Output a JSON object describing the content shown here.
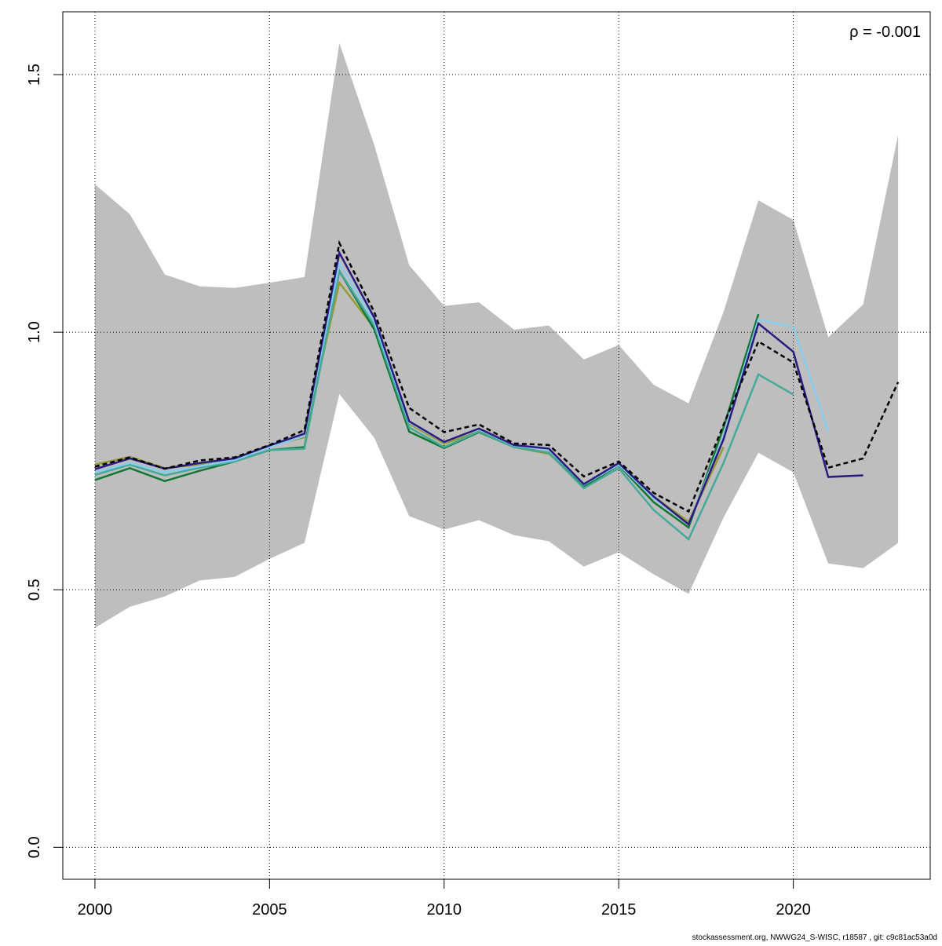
{
  "chart_data": {
    "type": "line",
    "annotation": "ρ = -0.001",
    "footer": "stockassessment.org, NWWG24_S-WISC, r18587 , git: c9c81ac53a0d",
    "x": [
      2000,
      2001,
      2002,
      2003,
      2004,
      2005,
      2006,
      2007,
      2008,
      2009,
      2010,
      2011,
      2012,
      2013,
      2014,
      2015,
      2016,
      2017,
      2018,
      2019,
      2020,
      2021,
      2022,
      2023
    ],
    "band": {
      "color": "#bebebe",
      "upper": [
        1.287,
        1.229,
        1.112,
        1.089,
        1.086,
        1.096,
        1.107,
        1.561,
        1.363,
        1.13,
        1.051,
        1.058,
        1.005,
        1.013,
        0.947,
        0.975,
        0.898,
        0.862,
        1.039,
        1.256,
        1.218,
        0.99,
        1.054,
        1.383
      ],
      "lower": [
        0.426,
        0.467,
        0.487,
        0.518,
        0.525,
        0.56,
        0.591,
        0.88,
        0.795,
        0.643,
        0.617,
        0.635,
        0.606,
        0.594,
        0.545,
        0.573,
        0.53,
        0.492,
        0.64,
        0.766,
        0.728,
        0.551,
        0.542,
        0.591
      ]
    },
    "series": [
      {
        "color": "#999933",
        "values": [
          0.743,
          0.758,
          0.736,
          0.743,
          0.755,
          0.78,
          0.796,
          1.096,
          1.008,
          0.822,
          0.784,
          0.807,
          0.777,
          0.764,
          0.705,
          0.743,
          0.681,
          0.632,
          0.777,
          null,
          null,
          null,
          null,
          null
        ]
      },
      {
        "color": "#117733",
        "values": [
          0.713,
          0.736,
          0.711,
          0.731,
          0.749,
          0.771,
          0.777,
          1.119,
          1.005,
          0.807,
          0.775,
          0.806,
          0.777,
          0.766,
          0.7,
          0.742,
          0.67,
          0.621,
          0.815,
          1.035,
          null,
          null,
          null,
          null
        ]
      },
      {
        "color": "#44aa99",
        "values": [
          0.723,
          0.743,
          0.722,
          0.737,
          0.749,
          0.771,
          0.774,
          1.119,
          1.013,
          0.815,
          0.777,
          0.807,
          0.777,
          0.766,
          0.697,
          0.736,
          0.655,
          0.598,
          0.746,
          0.918,
          0.879,
          null,
          null,
          null
        ]
      },
      {
        "color": "#88ccee",
        "values": [
          0.728,
          0.746,
          0.728,
          0.74,
          0.752,
          0.777,
          0.799,
          1.134,
          1.02,
          0.825,
          0.787,
          0.812,
          0.78,
          0.772,
          0.704,
          0.743,
          0.678,
          0.627,
          0.799,
          1.025,
          1.01,
          0.807,
          null,
          null
        ]
      },
      {
        "color": "#2b1a7f",
        "values": [
          0.734,
          0.755,
          0.735,
          0.746,
          0.755,
          0.78,
          0.803,
          1.154,
          1.028,
          0.827,
          0.787,
          0.813,
          0.781,
          0.774,
          0.705,
          0.746,
          0.681,
          0.627,
          0.792,
          1.017,
          0.962,
          0.719,
          0.722,
          null
        ]
      },
      {
        "color": "#000000",
        "dashed": true,
        "values": [
          0.739,
          0.757,
          0.735,
          0.751,
          0.757,
          0.781,
          0.81,
          1.173,
          1.039,
          0.853,
          0.806,
          0.821,
          0.784,
          0.781,
          0.72,
          0.749,
          0.688,
          0.652,
          0.82,
          0.982,
          0.941,
          0.737,
          0.755,
          0.903
        ]
      }
    ],
    "xlim": [
      1999.08,
      2023.92
    ],
    "xticks": [
      2000,
      2005,
      2010,
      2015,
      2020
    ],
    "ylim": [
      -0.062,
      1.622
    ],
    "yticks": [
      {
        "value": 0,
        "label": "0.0"
      },
      0.5,
      {
        "value": 1,
        "label": "1.0"
      },
      1.5
    ],
    "grid": true
  }
}
